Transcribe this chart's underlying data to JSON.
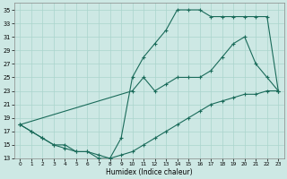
{
  "xlabel": "Humidex (Indice chaleur)",
  "bg_color": "#cde8e4",
  "grid_color": "#aad4cc",
  "line_color": "#1a6b5a",
  "xlim": [
    -0.5,
    23.5
  ],
  "ylim": [
    13,
    36
  ],
  "xticks": [
    0,
    1,
    2,
    3,
    4,
    5,
    6,
    7,
    8,
    9,
    10,
    11,
    12,
    13,
    14,
    15,
    16,
    17,
    18,
    19,
    20,
    21,
    22,
    23
  ],
  "yticks": [
    13,
    15,
    17,
    19,
    21,
    23,
    25,
    27,
    29,
    31,
    33,
    35
  ],
  "line1_x": [
    0,
    1,
    2,
    3,
    4,
    5,
    6,
    7,
    8,
    9,
    10,
    11,
    12,
    13,
    14,
    15,
    16,
    17,
    18,
    19,
    20,
    21,
    22,
    23
  ],
  "line1_y": [
    18,
    17,
    16,
    15,
    15,
    14,
    14,
    13,
    13,
    16,
    25,
    28,
    30,
    32,
    35,
    35,
    35,
    34,
    34,
    34,
    34,
    34,
    34,
    23
  ],
  "line2_x": [
    0,
    1,
    2,
    3,
    4,
    5,
    6,
    7,
    8,
    9,
    10,
    11,
    12,
    13,
    14,
    15,
    16,
    17,
    18,
    19,
    20,
    21,
    22,
    23
  ],
  "line2_y": [
    18,
    17,
    16,
    15,
    14.5,
    14,
    14,
    13.5,
    13,
    13.5,
    14,
    15,
    16,
    17,
    18,
    19,
    20,
    21,
    21.5,
    22,
    22.5,
    22.5,
    23,
    23
  ],
  "line3_x": [
    0,
    10,
    11,
    12,
    13,
    14,
    15,
    16,
    17,
    18,
    19,
    20,
    21,
    22,
    23
  ],
  "line3_y": [
    18,
    23,
    25,
    23,
    24,
    25,
    25,
    25,
    26,
    28,
    30,
    31,
    27,
    25,
    23
  ]
}
